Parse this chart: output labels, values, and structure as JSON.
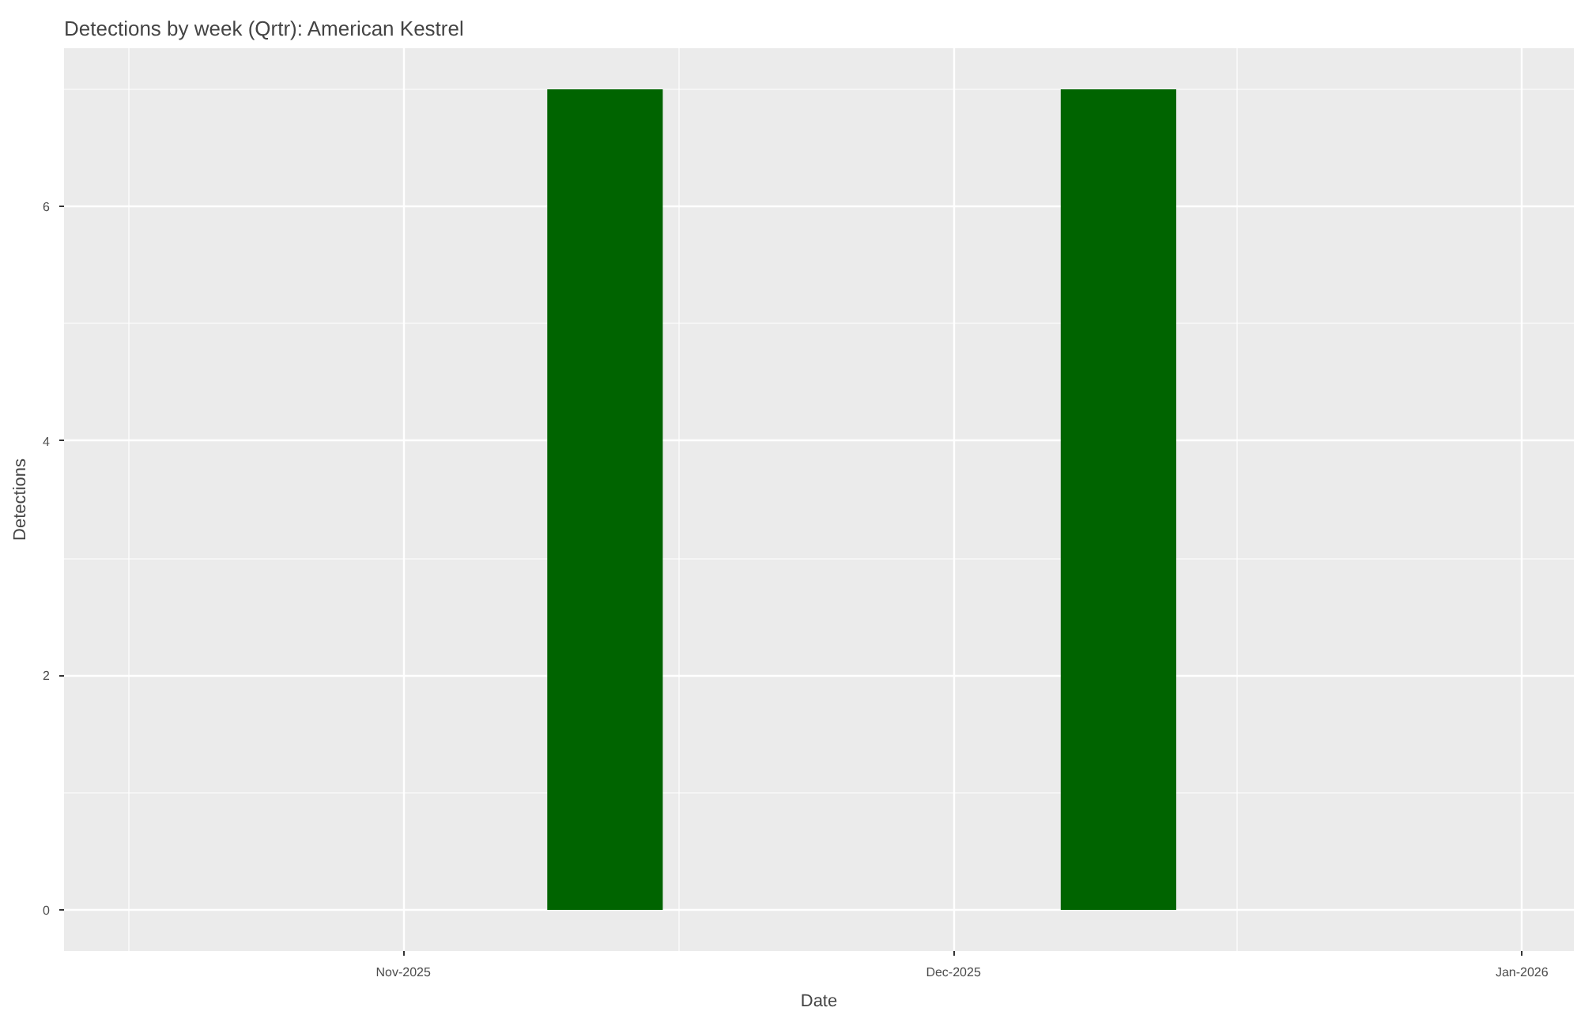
{
  "chart_data": {
    "type": "bar",
    "title": "Detections by week (Qrtr): American Kestrel",
    "xlabel": "Date",
    "ylabel": "Detections",
    "x": [
      "2025-11-12",
      "2025-12-10"
    ],
    "series": [
      {
        "color": "#006400",
        "values": [
          7,
          7
        ]
      }
    ],
    "xlim": [
      "2025-10-13T12:00",
      "2026-01-03T20:00"
    ],
    "xticks": [
      {
        "value": "2025-11-01",
        "label": "Nov-2025"
      },
      {
        "value": "2025-12-01",
        "label": "Dec-2025"
      },
      {
        "value": "2026-01-01",
        "label": "Jan-2026"
      }
    ],
    "ylim": [
      -0.35,
      7.35
    ],
    "yticks": [
      0,
      2,
      4,
      6
    ],
    "grid": true
  }
}
